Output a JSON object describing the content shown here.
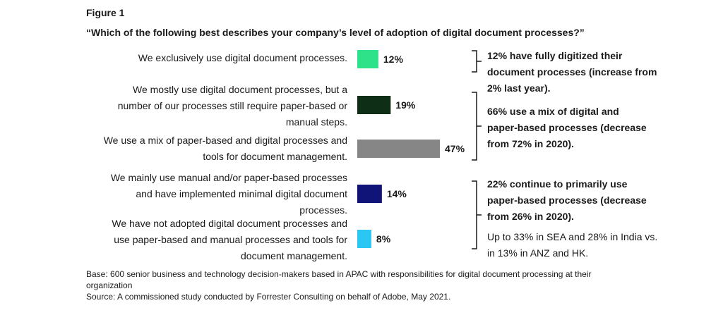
{
  "figure_label": "Figure 1",
  "question": "“Which of the following best describes your company’s level of adoption of digital document processes?”",
  "chart_data": {
    "type": "bar",
    "orientation": "horizontal",
    "categories": [
      [
        "We exclusively use digital document processes."
      ],
      [
        "We mostly use digital document processes, but a",
        "number of our processes still require paper-based or",
        "manual steps."
      ],
      [
        "We use a mix of paper-based and digital processes and",
        "tools for document management."
      ],
      [
        "We mainly use manual and/or paper-based processes",
        "and have implemented minimal digital document",
        "processes."
      ],
      [
        "We have not adopted digital document processes and",
        "use paper-based and manual processes and tools for",
        "document management."
      ]
    ],
    "values": [
      12,
      19,
      47,
      14,
      8
    ],
    "value_labels": [
      "12%",
      "19%",
      "47%",
      "14%",
      "8%"
    ],
    "colors": [
      "#2ee28a",
      "#0f2e16",
      "#868686",
      "#101378",
      "#2cc6f2"
    ],
    "unit": "%"
  },
  "callouts": [
    {
      "bold_lines": [
        "12% have fully digitized their",
        "document processes (increase from",
        "2% last year)."
      ],
      "normal_lines": []
    },
    {
      "bold_lines": [
        "66% use a mix of digital and",
        "paper-based processes (decrease",
        "from 72% in 2020)."
      ],
      "normal_lines": []
    },
    {
      "bold_lines": [
        "22% continue to primarily use",
        "paper-based processes (decrease",
        "from 26% in 2020)."
      ],
      "normal_lines": [
        "Up to 33% in SEA and 28% in India vs.",
        "in 13% in ANZ and HK."
      ]
    }
  ],
  "footnote": [
    "Base: 600 senior business and technology decision-makers based in APAC with responsibilities for digital document processing at their",
    "organization",
    "Source: A commissioned study conducted by Forrester Consulting on behalf of Adobe, May 2021."
  ]
}
